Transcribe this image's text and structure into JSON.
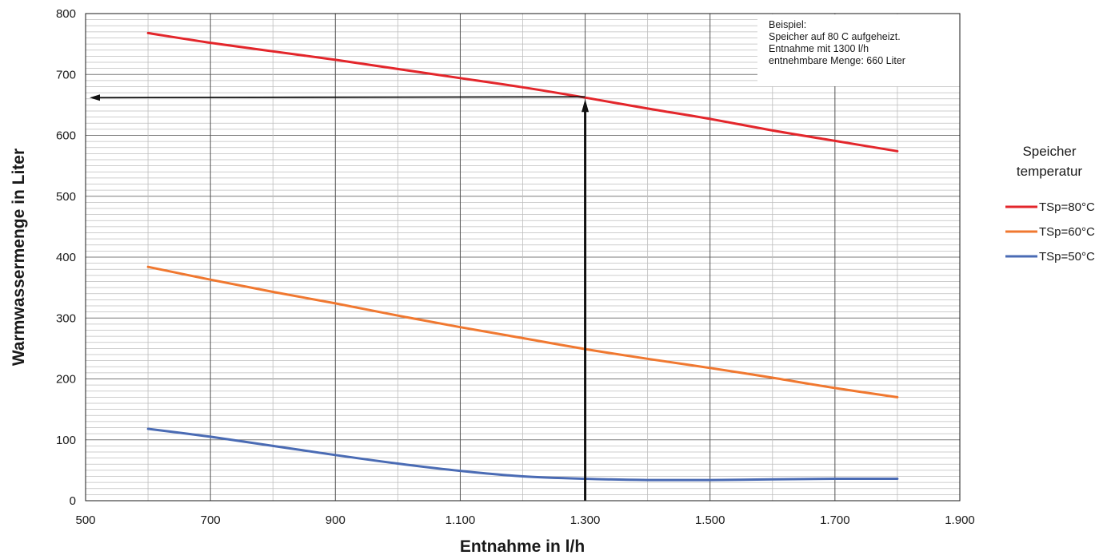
{
  "chart_data": {
    "type": "line",
    "xlabel": "Entnahme in l/h",
    "ylabel": "Warmwassermenge in Liter",
    "xlim": [
      500,
      1900
    ],
    "ylim": [
      0,
      800
    ],
    "x_ticks": [
      500,
      700,
      900,
      1100,
      1300,
      1500,
      1700,
      1900
    ],
    "x_tick_labels": [
      "500",
      "700",
      "900",
      "1.100",
      "1.300",
      "1.500",
      "1.700",
      "1.900"
    ],
    "y_ticks": [
      0,
      100,
      200,
      300,
      400,
      500,
      600,
      700,
      800
    ],
    "y_tick_labels": [
      "0",
      "100",
      "200",
      "300",
      "400",
      "500",
      "600",
      "700",
      "800"
    ],
    "x_major_step": 200,
    "x_minor_step": 100,
    "y_minor_step": 10,
    "grid": true,
    "legend_title_lines": [
      "Speicher",
      "temperatur"
    ],
    "legend_position": "right",
    "series": [
      {
        "name": "TSp=80°C",
        "color": "#e3262b",
        "x": [
          600,
          700,
          800,
          900,
          1000,
          1100,
          1200,
          1300,
          1400,
          1500,
          1600,
          1700,
          1800
        ],
        "y": [
          768,
          752,
          738,
          724,
          709,
          694,
          679,
          662,
          644,
          627,
          608,
          591,
          574
        ]
      },
      {
        "name": "TSp=60°C",
        "color": "#f07830",
        "x": [
          600,
          700,
          800,
          900,
          1000,
          1100,
          1200,
          1300,
          1400,
          1500,
          1600,
          1700,
          1800
        ],
        "y": [
          384,
          363,
          343,
          324,
          304,
          285,
          267,
          249,
          233,
          218,
          202,
          185,
          170
        ]
      },
      {
        "name": "TSp=50°C",
        "color": "#4a6bb4",
        "x": [
          600,
          700,
          800,
          900,
          1000,
          1100,
          1200,
          1300,
          1400,
          1500,
          1600,
          1700,
          1800
        ],
        "y": [
          118,
          105,
          90,
          75,
          61,
          49,
          40,
          36,
          34,
          34,
          35,
          36,
          36
        ]
      }
    ],
    "annotation": {
      "lines": [
        "Beispiel:",
        "Speicher auf 80  C aufgeheizt.",
        "Entnahme mit 1300 l/h",
        "entnehmbare Menge: 660 Liter"
      ],
      "example_x": 1300,
      "example_y": 662,
      "arrow_color": "#111111"
    }
  }
}
